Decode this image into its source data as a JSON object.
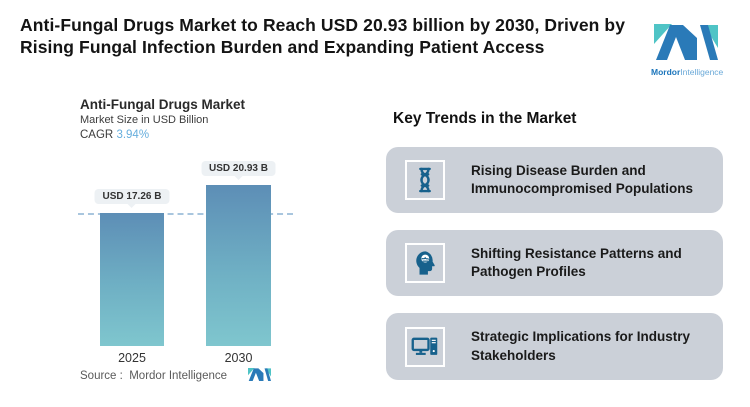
{
  "header": {
    "title": "Anti-Fungal Drugs Market to Reach USD 20.93 billion by 2030, Driven by Rising Fungal Infection Burden and Expanding Patient Access",
    "logo": {
      "bold": "Mordor",
      "light": "Intelligence"
    }
  },
  "chart": {
    "title": "Anti-Fungal Drugs Market",
    "subtitle": "Market Size in USD Billion",
    "cagr_label": "CAGR",
    "cagr_value": "3.94%",
    "source_label": "Source :",
    "source_value": "Mordor Intelligence"
  },
  "chart_data": {
    "type": "bar",
    "title": "Anti-Fungal Drugs Market",
    "ylabel": "Market Size in USD Billion",
    "xlabel": "",
    "categories": [
      "2025",
      "2030"
    ],
    "values": [
      17.26,
      20.93
    ],
    "data_labels": [
      "USD 17.26 B",
      "USD 20.93 B"
    ],
    "annotations": [
      "CAGR 3.94%"
    ],
    "ylim": [
      0,
      22
    ],
    "grid": false,
    "legend": false,
    "reference_line": {
      "y": 17.26,
      "style": "dashed"
    }
  },
  "trends": {
    "heading": "Key Trends in the Market",
    "items": [
      {
        "icon": "dna-icon",
        "text": "Rising Disease Burden and Immunocompromised Populations"
      },
      {
        "icon": "brain-head-icon",
        "text": "Shifting Resistance Patterns and Pathogen Profiles"
      },
      {
        "icon": "computer-icon",
        "text": "Strategic Implications for Industry Stakeholders"
      }
    ]
  },
  "colors": {
    "brand_blue": "#1b75bb",
    "brand_teal": "#4fc4c6",
    "bar_top": "#5d8eb6",
    "bar_bottom": "#7fc6ce",
    "card_bg": "#cbd0d8",
    "icon_blue": "#17618c",
    "cagr_value": "#66aedd",
    "dashed_line": "#a9c6de",
    "pill_bg": "#edf1f4"
  }
}
